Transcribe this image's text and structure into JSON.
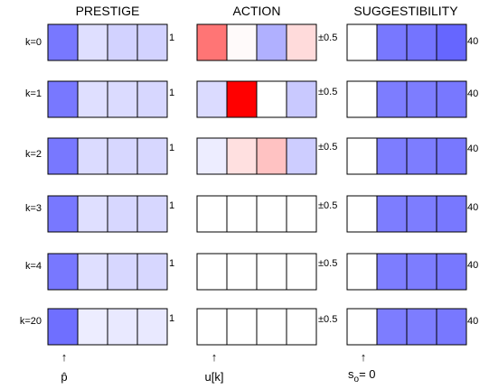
{
  "column_titles": [
    "PRESTIGE",
    "ACTION",
    "SUGGESTIBILITY"
  ],
  "row_labels": [
    "k=0",
    "k=1",
    "k=2",
    "k=3",
    "k=4",
    "k=20"
  ],
  "scale_labels": [
    "1",
    "±0.5",
    "40"
  ],
  "bottom_labels": {
    "prestige": "p̂",
    "action": "u[k]",
    "suggestibility_base": "s",
    "suggestibility_sub": "o",
    "suggestibility_tail": "= 0"
  },
  "arrow_glyph": "↑",
  "colors": {
    "positive": "#4b4bff",
    "negative": "#ff0000",
    "outline": "#000000"
  },
  "chart_data": {
    "type": "heatmap",
    "rows": [
      "k=0",
      "k=1",
      "k=2",
      "k=3",
      "k=4",
      "k=20"
    ],
    "cells_per_block": 4,
    "prestige": {
      "scale_max": 1,
      "values": [
        [
          0.75,
          0.18,
          0.25,
          0.25
        ],
        [
          0.75,
          0.18,
          0.2,
          0.22
        ],
        [
          0.75,
          0.2,
          0.22,
          0.22
        ],
        [
          0.75,
          0.18,
          0.22,
          0.22
        ],
        [
          0.75,
          0.18,
          0.22,
          0.22
        ],
        [
          0.8,
          0.1,
          0.12,
          0.12
        ]
      ]
    },
    "action": {
      "scale_max": 0.5,
      "values": [
        [
          -0.27,
          -0.01,
          0.22,
          -0.07
        ],
        [
          0.1,
          -0.5,
          0.0,
          0.15
        ],
        [
          0.05,
          -0.06,
          -0.12,
          0.14
        ],
        [
          0,
          0,
          0,
          0
        ],
        [
          0,
          0,
          0,
          0
        ],
        [
          0,
          0,
          0,
          0
        ]
      ]
    },
    "suggestibility": {
      "scale_max": 40,
      "values": [
        [
          0,
          30,
          31,
          34
        ],
        [
          0,
          29,
          29,
          30
        ],
        [
          0,
          29,
          29,
          30
        ],
        [
          0,
          29,
          29,
          30
        ],
        [
          0,
          29,
          29,
          30
        ],
        [
          0,
          29,
          29,
          30
        ]
      ]
    }
  }
}
